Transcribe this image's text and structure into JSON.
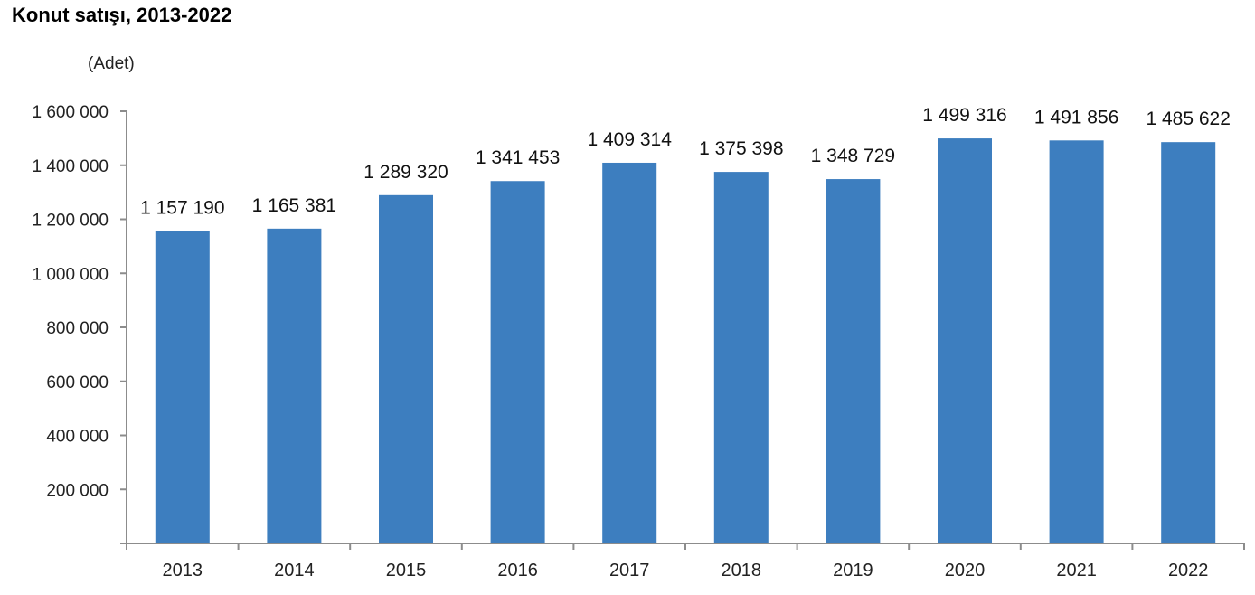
{
  "chart": {
    "title": "Konut satışı, 2013-2022",
    "unit": "(Adet)",
    "bar_color": "#3d7ebf",
    "axis_color": "#8c8c8c"
  },
  "chart_data": {
    "type": "bar",
    "title": "Konut satışı, 2013-2022",
    "xlabel": "",
    "ylabel": "(Adet)",
    "ylim": [
      0,
      1600000
    ],
    "yticks": [
      200000,
      400000,
      600000,
      800000,
      1000000,
      1200000,
      1400000,
      1600000
    ],
    "ytick_labels": [
      "200 000",
      "400 000",
      "600 000",
      "800 000",
      "1 000 000",
      "1 200 000",
      "1 400 000",
      "1 600 000"
    ],
    "grid": false,
    "legend": null,
    "categories": [
      "2013",
      "2014",
      "2015",
      "2016",
      "2017",
      "2018",
      "2019",
      "2020",
      "2021",
      "2022"
    ],
    "values": [
      1157190,
      1165381,
      1289320,
      1341453,
      1409314,
      1375398,
      1348729,
      1499316,
      1491856,
      1485622
    ],
    "value_labels": [
      "1 157 190",
      "1 165 381",
      "1 289 320",
      "1 341 453",
      "1 409 314",
      "1 375 398",
      "1 348 729",
      "1 499 316",
      "1 491 856",
      "1 485 622"
    ]
  }
}
